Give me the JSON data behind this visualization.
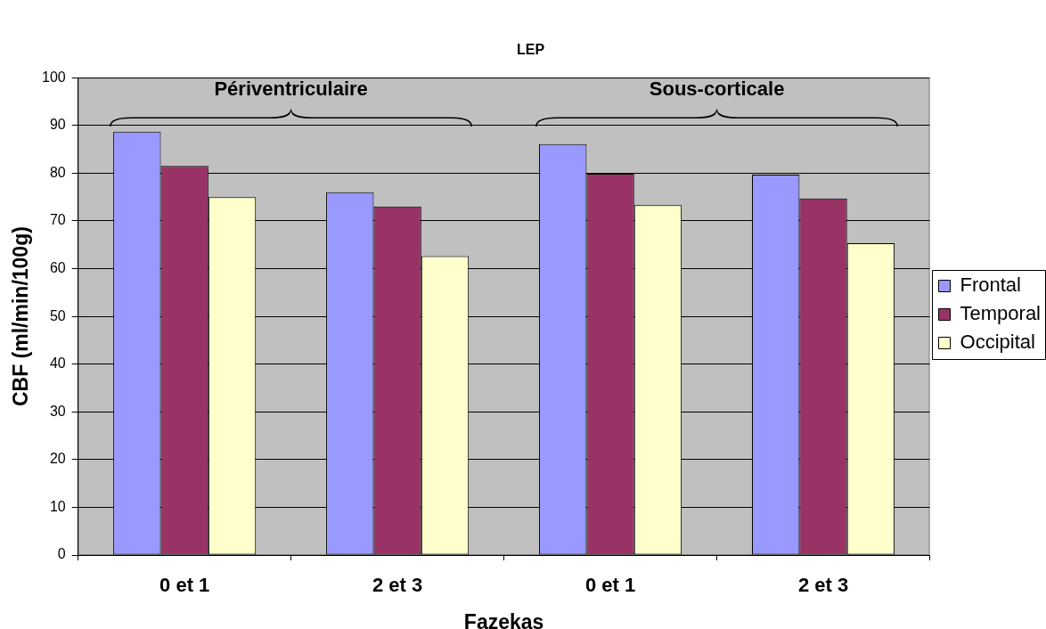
{
  "chart_data": {
    "type": "bar",
    "title": "LEP",
    "xlabel": "Fazekas",
    "ylabel": "CBF (ml/min/100g)",
    "categories": [
      "0 et 1",
      "2 et 3",
      "0 et 1",
      "2 et 3"
    ],
    "series": [
      {
        "name": "Frontal",
        "color": "#9999ff",
        "values": [
          88.7,
          76.0,
          86.1,
          79.7
        ]
      },
      {
        "name": "Temporal",
        "color": "#993366",
        "values": [
          81.5,
          73.0,
          79.9,
          74.7
        ]
      },
      {
        "name": "Occipital",
        "color": "#ffffcc",
        "values": [
          75.0,
          62.6,
          73.3,
          65.3
        ]
      }
    ],
    "ylim": [
      0,
      100
    ],
    "yticks": [
      0,
      10,
      20,
      30,
      40,
      50,
      60,
      70,
      80,
      90,
      100
    ],
    "grid": "y",
    "legend": "right",
    "annotations": [
      "Périventriculaire",
      "Sous-corticale"
    ]
  }
}
